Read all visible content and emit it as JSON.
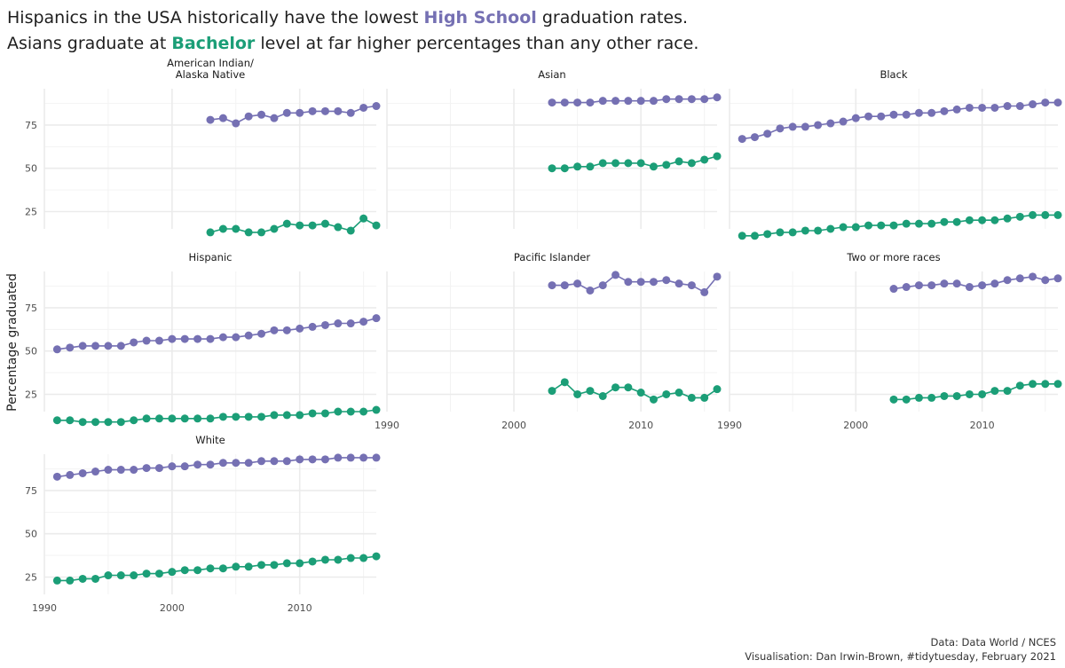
{
  "title": {
    "line1_pre": "Hispanics in the USA historically have the lowest ",
    "line1_highlight": "High School",
    "line1_post": " graduation rates.",
    "line2_pre": "Asians graduate at ",
    "line2_highlight": "Bachelor",
    "line2_post": " level at far higher percentages than any other race."
  },
  "caption": {
    "line1": "Data: Data World / NCES",
    "line2": "Visualisation: Dan Irwin-Brown, #tidytuesday, February 2021"
  },
  "colors": {
    "high_school": "#7570b3",
    "bachelor": "#1b9e77",
    "grid": "#ebebeb",
    "text": "#4d4d4d"
  },
  "chart_data": {
    "type": "line",
    "ylabel": "Percentage graduated",
    "xlim": [
      1990,
      2016
    ],
    "ylim": [
      15,
      96
    ],
    "x_ticks": [
      1990,
      2000,
      2010
    ],
    "y_ticks": [
      25,
      50,
      75
    ],
    "grid": true,
    "series_names": [
      "High School",
      "Bachelor"
    ],
    "panels": [
      {
        "name": "American Indian/\nAlaska Native",
        "x": [
          2003,
          2004,
          2005,
          2006,
          2007,
          2008,
          2009,
          2010,
          2011,
          2012,
          2013,
          2014,
          2015,
          2016
        ],
        "high_school": [
          78,
          79,
          76,
          80,
          81,
          79,
          82,
          82,
          83,
          83,
          83,
          82,
          85,
          86
        ],
        "bachelor": [
          13,
          15,
          15,
          13,
          13,
          15,
          18,
          17,
          17,
          18,
          16,
          14,
          21,
          17
        ]
      },
      {
        "name": "Asian",
        "x": [
          2003,
          2004,
          2005,
          2006,
          2007,
          2008,
          2009,
          2010,
          2011,
          2012,
          2013,
          2014,
          2015,
          2016
        ],
        "high_school": [
          88,
          88,
          88,
          88,
          89,
          89,
          89,
          89,
          89,
          90,
          90,
          90,
          90,
          91
        ],
        "bachelor": [
          50,
          50,
          51,
          51,
          53,
          53,
          53,
          53,
          51,
          52,
          54,
          53,
          55,
          57
        ]
      },
      {
        "name": "Black",
        "x": [
          1991,
          1992,
          1993,
          1994,
          1995,
          1996,
          1997,
          1998,
          1999,
          2000,
          2001,
          2002,
          2003,
          2004,
          2005,
          2006,
          2007,
          2008,
          2009,
          2010,
          2011,
          2012,
          2013,
          2014,
          2015,
          2016
        ],
        "high_school": [
          67,
          68,
          70,
          73,
          74,
          74,
          75,
          76,
          77,
          79,
          80,
          80,
          81,
          81,
          82,
          82,
          83,
          84,
          85,
          85,
          85,
          86,
          86,
          87,
          88,
          88
        ],
        "bachelor": [
          11,
          11,
          12,
          13,
          13,
          14,
          14,
          15,
          16,
          16,
          17,
          17,
          17,
          18,
          18,
          18,
          19,
          19,
          20,
          20,
          20,
          21,
          22,
          23,
          23,
          23
        ]
      },
      {
        "name": "Hispanic",
        "x": [
          1991,
          1992,
          1993,
          1994,
          1995,
          1996,
          1997,
          1998,
          1999,
          2000,
          2001,
          2002,
          2003,
          2004,
          2005,
          2006,
          2007,
          2008,
          2009,
          2010,
          2011,
          2012,
          2013,
          2014,
          2015,
          2016
        ],
        "high_school": [
          51,
          52,
          53,
          53,
          53,
          53,
          55,
          56,
          56,
          57,
          57,
          57,
          57,
          58,
          58,
          59,
          60,
          62,
          62,
          63,
          64,
          65,
          66,
          66,
          67,
          69
        ],
        "bachelor": [
          10,
          10,
          9,
          9,
          9,
          9,
          10,
          11,
          11,
          11,
          11,
          11,
          11,
          12,
          12,
          12,
          12,
          13,
          13,
          13,
          14,
          14,
          15,
          15,
          15,
          16
        ]
      },
      {
        "name": "Pacific Islander",
        "x": [
          2003,
          2004,
          2005,
          2006,
          2007,
          2008,
          2009,
          2010,
          2011,
          2012,
          2013,
          2014,
          2015,
          2016
        ],
        "high_school": [
          88,
          88,
          89,
          85,
          88,
          94,
          90,
          90,
          90,
          91,
          89,
          88,
          84,
          93
        ],
        "bachelor": [
          27,
          32,
          25,
          27,
          24,
          29,
          29,
          26,
          22,
          25,
          26,
          23,
          23,
          28
        ]
      },
      {
        "name": "Two or more races",
        "x": [
          2003,
          2004,
          2005,
          2006,
          2007,
          2008,
          2009,
          2010,
          2011,
          2012,
          2013,
          2014,
          2015,
          2016
        ],
        "high_school": [
          86,
          87,
          88,
          88,
          89,
          89,
          87,
          88,
          89,
          91,
          92,
          93,
          91,
          92
        ],
        "bachelor": [
          22,
          22,
          23,
          23,
          24,
          24,
          25,
          25,
          27,
          27,
          30,
          31,
          31,
          31
        ]
      },
      {
        "name": "White",
        "x": [
          1991,
          1992,
          1993,
          1994,
          1995,
          1996,
          1997,
          1998,
          1999,
          2000,
          2001,
          2002,
          2003,
          2004,
          2005,
          2006,
          2007,
          2008,
          2009,
          2010,
          2011,
          2012,
          2013,
          2014,
          2015,
          2016
        ],
        "high_school": [
          83,
          84,
          85,
          86,
          87,
          87,
          87,
          88,
          88,
          89,
          89,
          90,
          90,
          91,
          91,
          91,
          92,
          92,
          92,
          93,
          93,
          93,
          94,
          94,
          94,
          94
        ],
        "bachelor": [
          23,
          23,
          24,
          24,
          26,
          26,
          26,
          27,
          27,
          28,
          29,
          29,
          30,
          30,
          31,
          31,
          32,
          32,
          33,
          33,
          34,
          35,
          35,
          36,
          36,
          37
        ]
      }
    ]
  }
}
